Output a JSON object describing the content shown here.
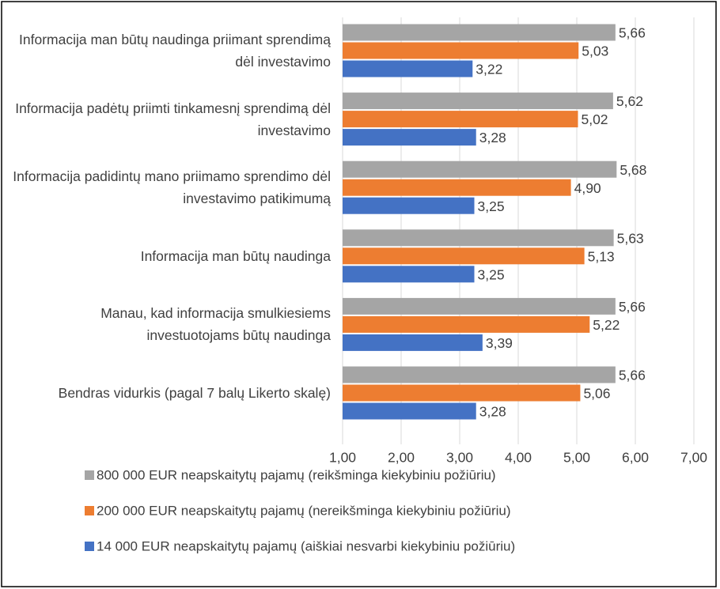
{
  "chart_data": {
    "type": "bar",
    "orientation": "horizontal",
    "categories": [
      "Informacija man būtų naudinga priimant sprendimą dėl investavimo",
      "Informacija padėtų priimti tinkamesnį sprendimą dėl investavimo",
      "Informacija padidintų mano priimamo sprendimo dėl investavimo patikimumą",
      "Informacija man būtų naudinga",
      "Manau, kad informacija smulkiesiems investuotojams būtų naudinga",
      "Bendras vidurkis (pagal 7 balų Likerto skalę)"
    ],
    "series": [
      {
        "name": "800 000 EUR neapskaitytų pajamų (reikšminga kiekybiniu požiūriu)",
        "color": "#a5a5a5",
        "values": [
          5.66,
          5.62,
          5.68,
          5.63,
          5.66,
          5.66
        ],
        "value_labels": [
          "5,66",
          "5,62",
          "5,68",
          "5,63",
          "5,66",
          "5,66"
        ]
      },
      {
        "name": "200 000 EUR neapskaitytų pajamų (nereikšminga kiekybiniu požiūriu)",
        "color": "#ed7d31",
        "values": [
          5.03,
          5.02,
          4.9,
          5.13,
          5.22,
          5.06
        ],
        "value_labels": [
          "5,03",
          "5,02",
          "4,90",
          "5,13",
          "5,22",
          "5,06"
        ]
      },
      {
        "name": "14 000 EUR neapskaitytų pajamų (aiškiai nesvarbi kiekybiniu požiūriu)",
        "color": "#4472c4",
        "values": [
          3.22,
          3.28,
          3.25,
          3.25,
          3.39,
          3.28
        ],
        "value_labels": [
          "3,22",
          "3,28",
          "3,25",
          "3,25",
          "3,39",
          "3,28"
        ]
      }
    ],
    "xlim": [
      1,
      7
    ],
    "xticks": [
      {
        "value": 1,
        "label": "1,00"
      },
      {
        "value": 2,
        "label": "2,00"
      },
      {
        "value": 3,
        "label": "3,00"
      },
      {
        "value": 4,
        "label": "4,00"
      },
      {
        "value": 5,
        "label": "5,00"
      },
      {
        "value": 6,
        "label": "6,00"
      },
      {
        "value": 7,
        "label": "7,00"
      }
    ],
    "grid": true
  }
}
